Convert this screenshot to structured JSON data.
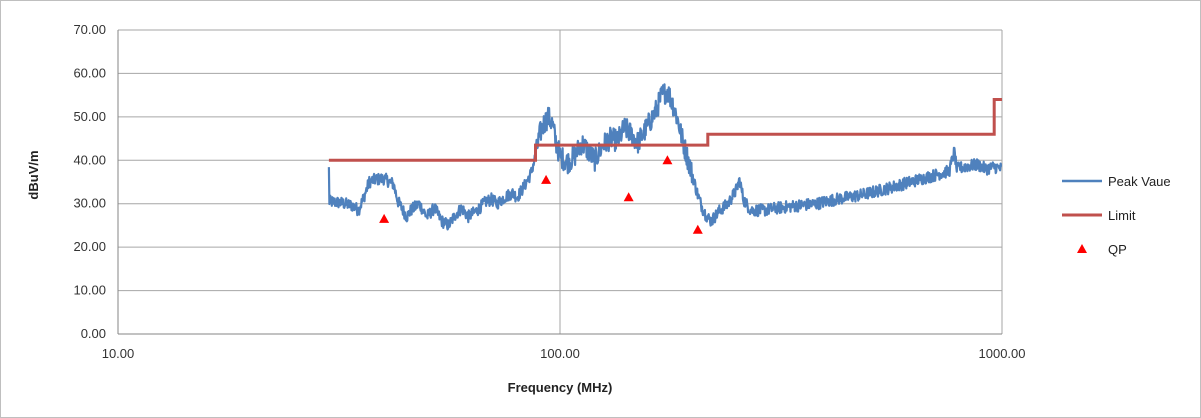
{
  "chart_data": {
    "type": "line",
    "xlabel": "Frequency (MHz)",
    "ylabel": "dBuV/m",
    "x_scale": "log",
    "xlim": [
      10,
      1000
    ],
    "ylim": [
      0,
      70
    ],
    "x_ticks": [
      "10.00",
      "100.00",
      "1000.00"
    ],
    "y_ticks": [
      "0.00",
      "10.00",
      "20.00",
      "30.00",
      "40.00",
      "50.00",
      "60.00",
      "70.00"
    ],
    "grid": true,
    "legend_position": "right",
    "series": [
      {
        "name": "Peak Vaue",
        "type": "line",
        "color": "#4f81bd",
        "points": [
          [
            30,
            30.5
          ],
          [
            32,
            30.2
          ],
          [
            34,
            29.5
          ],
          [
            35,
            28.5
          ],
          [
            36,
            31.5
          ],
          [
            37,
            35.0
          ],
          [
            38,
            35.5
          ],
          [
            40,
            35.8
          ],
          [
            42,
            34.5
          ],
          [
            43,
            30.5
          ],
          [
            45,
            27.0
          ],
          [
            46,
            28.5
          ],
          [
            48,
            30.0
          ],
          [
            50,
            27.0
          ],
          [
            52,
            29.0
          ],
          [
            54,
            26.0
          ],
          [
            56,
            25.0
          ],
          [
            58,
            27.5
          ],
          [
            60,
            29.0
          ],
          [
            62,
            27.0
          ],
          [
            65,
            28.5
          ],
          [
            68,
            30.5
          ],
          [
            70,
            31.0
          ],
          [
            72,
            30.0
          ],
          [
            75,
            31.5
          ],
          [
            78,
            32.5
          ],
          [
            80,
            31.5
          ],
          [
            83,
            34.0
          ],
          [
            86,
            37.0
          ],
          [
            88,
            41.0
          ],
          [
            90,
            46.0
          ],
          [
            92,
            48.5
          ],
          [
            94,
            50.0
          ],
          [
            96,
            48.5
          ],
          [
            98,
            44.0
          ],
          [
            100,
            41.0
          ],
          [
            104,
            39.5
          ],
          [
            108,
            41.0
          ],
          [
            112,
            44.0
          ],
          [
            116,
            42.0
          ],
          [
            120,
            40.0
          ],
          [
            125,
            43.5
          ],
          [
            130,
            45.0
          ],
          [
            135,
            44.5
          ],
          [
            140,
            47.5
          ],
          [
            145,
            46.0
          ],
          [
            150,
            44.0
          ],
          [
            155,
            46.5
          ],
          [
            160,
            49.0
          ],
          [
            165,
            51.5
          ],
          [
            170,
            55.0
          ],
          [
            175,
            56.0
          ],
          [
            180,
            53.0
          ],
          [
            185,
            49.0
          ],
          [
            190,
            44.0
          ],
          [
            195,
            40.0
          ],
          [
            200,
            36.0
          ],
          [
            205,
            32.0
          ],
          [
            210,
            29.0
          ],
          [
            215,
            27.0
          ],
          [
            220,
            26.0
          ],
          [
            230,
            28.5
          ],
          [
            240,
            30.0
          ],
          [
            250,
            33.0
          ],
          [
            255,
            35.5
          ],
          [
            260,
            31.0
          ],
          [
            270,
            28.5
          ],
          [
            290,
            28.5
          ],
          [
            310,
            29.0
          ],
          [
            340,
            29.5
          ],
          [
            380,
            30.0
          ],
          [
            420,
            31.0
          ],
          [
            480,
            32.0
          ],
          [
            550,
            33.5
          ],
          [
            620,
            35.0
          ],
          [
            700,
            36.5
          ],
          [
            760,
            37.5
          ],
          [
            780,
            42.0
          ],
          [
            790,
            38.0
          ],
          [
            820,
            38.5
          ],
          [
            880,
            39.0
          ],
          [
            920,
            38.0
          ],
          [
            960,
            38.5
          ],
          [
            1000,
            38.0
          ]
        ]
      },
      {
        "name": "Limit",
        "type": "line",
        "color": "#c0504d",
        "points": [
          [
            30,
            40
          ],
          [
            88,
            40
          ],
          [
            88,
            43.5
          ],
          [
            216,
            43.5
          ],
          [
            216,
            46
          ],
          [
            960,
            46
          ],
          [
            960,
            54
          ],
          [
            1000,
            54
          ]
        ]
      },
      {
        "name": "QP",
        "type": "scatter",
        "color": "#ff0000",
        "marker": "triangle",
        "points": [
          [
            40,
            26.5
          ],
          [
            93,
            35.5
          ],
          [
            143,
            31.5
          ],
          [
            175,
            40.0
          ],
          [
            205,
            24.0
          ]
        ]
      }
    ]
  }
}
